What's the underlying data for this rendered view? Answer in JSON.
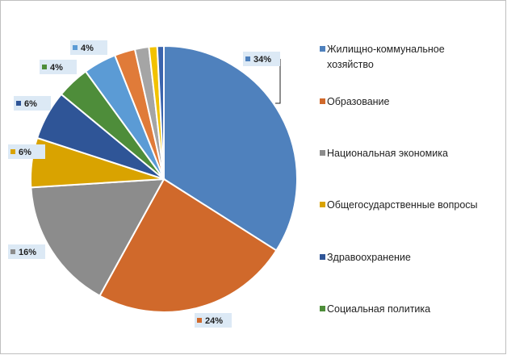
{
  "chart_data": {
    "type": "pie",
    "categories": [
      "Жилищно-коммунальное хозяйство",
      "Образование",
      "Национальная экономика",
      "Общегосударственные вопросы",
      "Здравоохранение",
      "Социальная политика",
      "",
      "",
      "",
      "",
      ""
    ],
    "values": [
      34,
      24,
      16,
      6,
      6,
      4,
      4,
      2.5,
      1.7,
      1,
      0.8
    ],
    "data_labels": [
      "34%",
      "24%",
      "16%",
      "6%",
      "6%",
      "4%",
      "4%",
      "",
      "",
      "",
      ""
    ],
    "colors": [
      "#4f81bd",
      "#d0692b",
      "#8c8c8c",
      "#d9a300",
      "#2f5597",
      "#4e8d3a",
      "#5b9bd5",
      "#e07b39",
      "#a5a5a5",
      "#f2c200",
      "#3b64ad"
    ],
    "legend": {
      "position": "right",
      "entries": [
        {
          "label_lines": [
            "Жилищно-коммунальное",
            "хозяйство"
          ],
          "color": "#4f81bd"
        },
        {
          "label_lines": [
            "Образование"
          ],
          "color": "#d0692b"
        },
        {
          "label_lines": [
            "Национальная экономика"
          ],
          "color": "#8c8c8c"
        },
        {
          "label_lines": [
            "Общегосударственные вопросы"
          ],
          "color": "#d9a300"
        },
        {
          "label_lines": [
            "Здравоохранение"
          ],
          "color": "#2f5597"
        },
        {
          "label_lines": [
            "Социальная политика"
          ],
          "color": "#4e8d3a"
        }
      ]
    },
    "title": ""
  }
}
